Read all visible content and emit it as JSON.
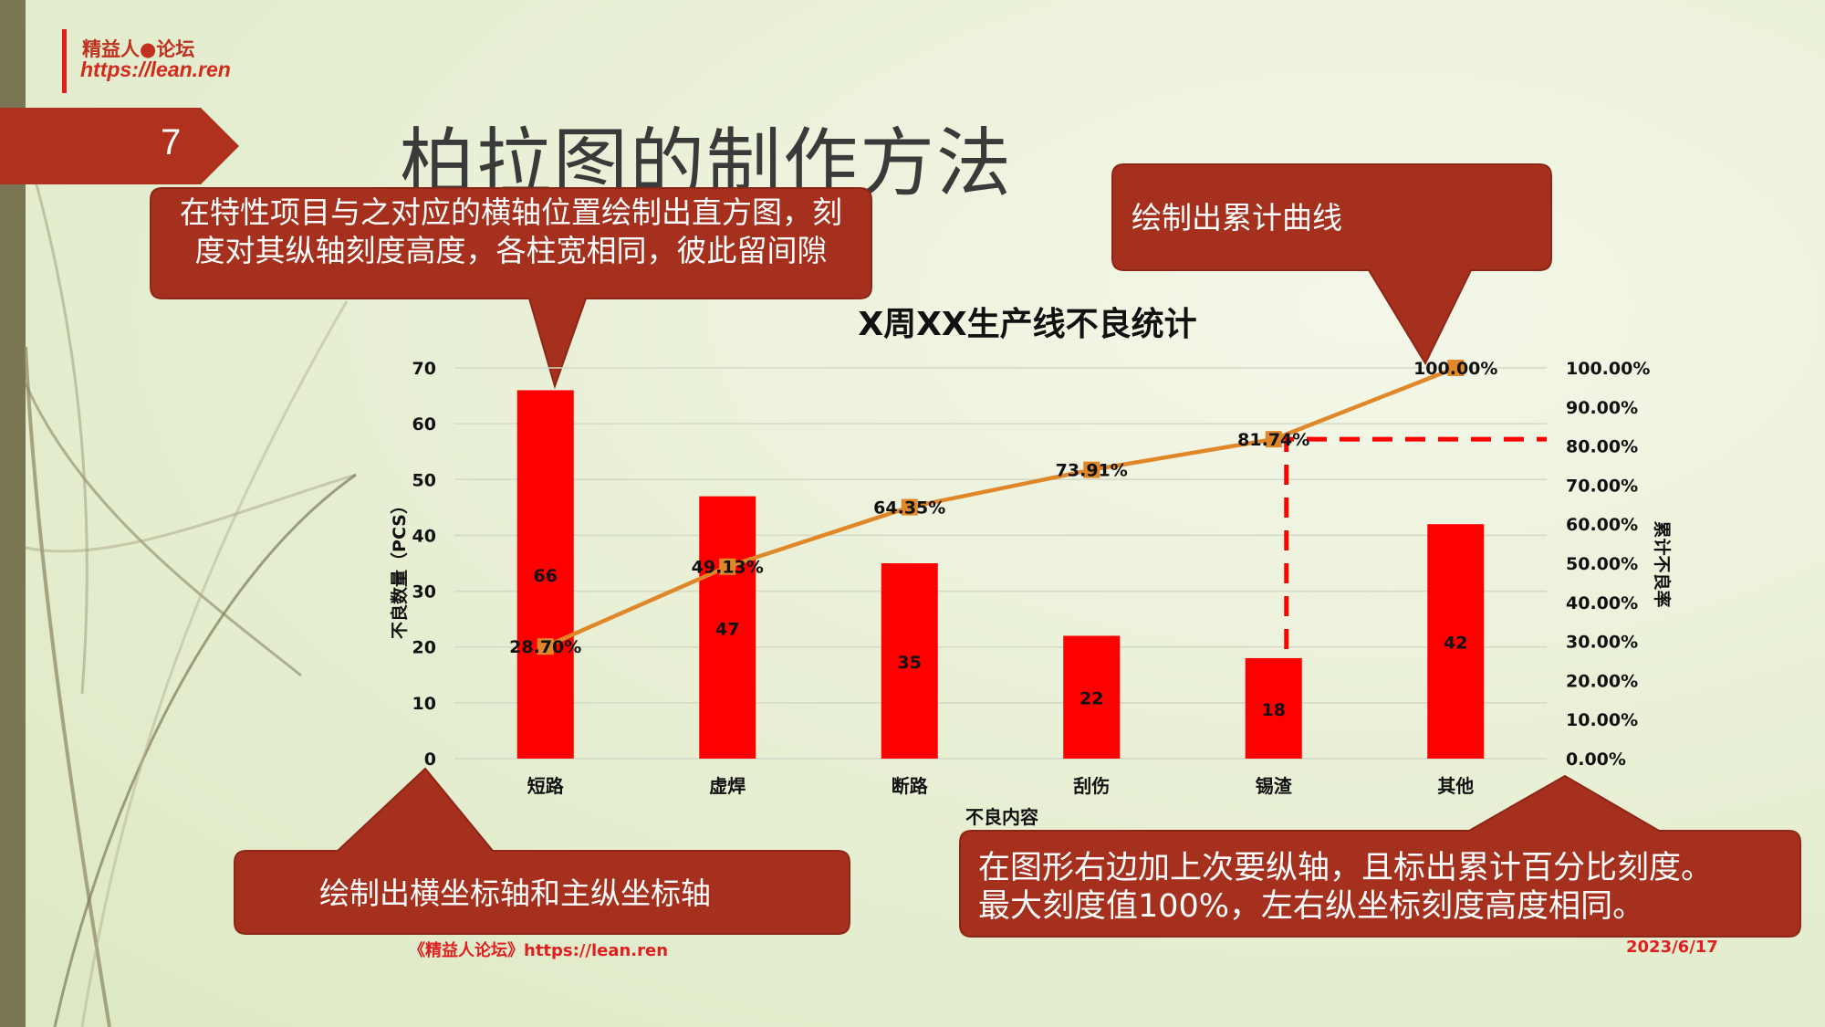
{
  "header": {
    "logo_line1": "精益人●论坛",
    "logo_line2": "https://lean.ren",
    "page_number": "7",
    "title": "柏拉图的制作方法"
  },
  "callouts": {
    "bars": "在特性项目与之对应的横轴位置绘制出直方图，刻度对其纵轴刻度高度，各柱宽相同，彼此留间隙",
    "cumulative": "绘制出累计曲线",
    "axes": "绘制出横坐标轴和主纵坐标轴",
    "secondary_axis_line1": "在图形右边加上次要纵轴，且标出累计百分比刻度。",
    "secondary_axis_line2": "最大刻度值100%，左右纵坐标刻度高度相同。"
  },
  "footer": {
    "left": "《精益人论坛》https://lean.ren",
    "date": "2023/6/17"
  },
  "colors": {
    "bar": "#ff0000",
    "line": "#e0872a",
    "callout": "#a5301d",
    "guide": "#ff0000"
  },
  "chart_data": {
    "type": "bar",
    "title": "X周XX生产线不良统计",
    "xlabel": "不良内容",
    "ylabel": "不良数量（PCS）",
    "y2label": "累计不良率",
    "categories": [
      "短路",
      "虚焊",
      "断路",
      "刮伤",
      "锡渣",
      "其他"
    ],
    "values": [
      66,
      47,
      35,
      22,
      18,
      42
    ],
    "cumulative": [
      28.7,
      49.13,
      64.35,
      73.91,
      81.74,
      100.0
    ],
    "cumulative_labels": [
      "28.70%",
      "49.13%",
      "64.35%",
      "73.91%",
      "81.74%",
      "100.00%"
    ],
    "ylim": [
      0,
      70
    ],
    "yticks": [
      "0",
      "10",
      "20",
      "30",
      "40",
      "50",
      "60",
      "70"
    ],
    "y2lim": [
      0,
      100
    ],
    "y2ticks": [
      "0.00%",
      "10.00%",
      "20.00%",
      "30.00%",
      "40.00%",
      "50.00%",
      "60.00%",
      "70.00%",
      "80.00%",
      "90.00%",
      "100.00%"
    ],
    "grid": true,
    "legend": "none"
  }
}
